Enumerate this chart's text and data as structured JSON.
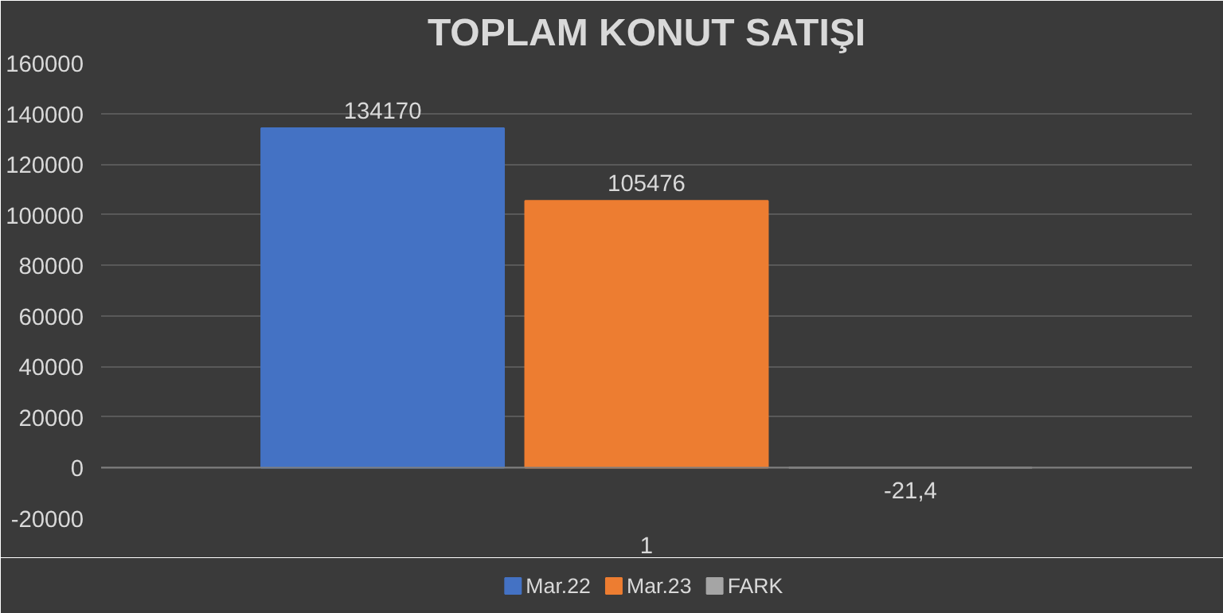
{
  "chart_data": {
    "type": "bar",
    "title": "TOPLAM KONUT SATIŞI",
    "categories": [
      "1"
    ],
    "series": [
      {
        "name": "Mar.22",
        "color": "#4472c4",
        "values": [
          134170
        ],
        "value_labels": [
          "134170"
        ]
      },
      {
        "name": "Mar.23",
        "color": "#ed7d31",
        "values": [
          105476
        ],
        "value_labels": [
          "105476"
        ]
      },
      {
        "name": "FARK",
        "color": "#a5a5a5",
        "values": [
          -21.4
        ],
        "value_labels": [
          "-21,4"
        ]
      }
    ],
    "ylim": [
      -20000,
      160000
    ],
    "yticks": [
      -20000,
      0,
      20000,
      40000,
      60000,
      80000,
      100000,
      120000,
      140000,
      160000
    ],
    "grid": "y",
    "legend": "bottom"
  }
}
